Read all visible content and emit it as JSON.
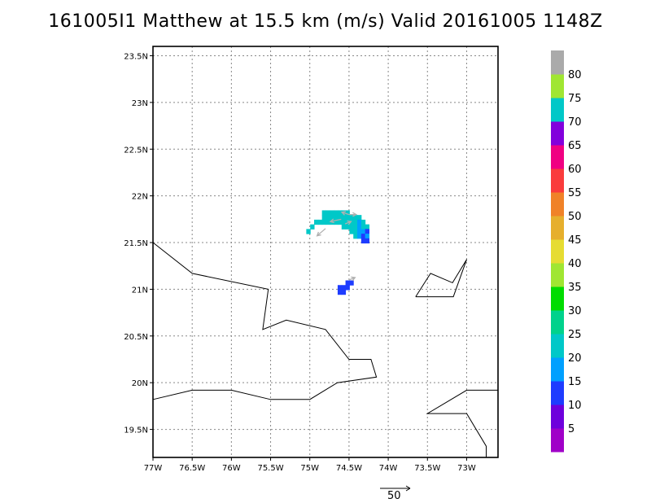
{
  "title": "161005I1 Matthew at 15.5 km (m/s) Valid 20161005 1148Z",
  "map": {
    "lon_range": [
      -77,
      -72.6
    ],
    "lat_range": [
      19.2,
      23.6
    ],
    "lon_ticks": [
      {
        "value": -77,
        "label": "77W"
      },
      {
        "value": -76.5,
        "label": "76.5W"
      },
      {
        "value": -76,
        "label": "76W"
      },
      {
        "value": -75.5,
        "label": "75.5W"
      },
      {
        "value": -75,
        "label": "75W"
      },
      {
        "value": -74.5,
        "label": "74.5W"
      },
      {
        "value": -74,
        "label": "74W"
      },
      {
        "value": -73.5,
        "label": "73.5W"
      },
      {
        "value": -73,
        "label": "73W"
      }
    ],
    "lat_ticks": [
      {
        "value": 19.5,
        "label": "19.5N"
      },
      {
        "value": 20,
        "label": "20N"
      },
      {
        "value": 20.5,
        "label": "20.5N"
      },
      {
        "value": 21,
        "label": "21N"
      },
      {
        "value": 21.5,
        "label": "21.5N"
      },
      {
        "value": 22,
        "label": "22N"
      },
      {
        "value": 22.5,
        "label": "22.5N"
      },
      {
        "value": 23,
        "label": "23N"
      },
      {
        "value": 23.5,
        "label": "23.5N"
      }
    ],
    "grid": true,
    "coastlines": [
      [
        [
          -77,
          21.5
        ],
        [
          -76.5,
          21.17
        ],
        [
          -75.53,
          21.0
        ],
        [
          -75.6,
          20.57
        ],
        [
          -75.3,
          20.67
        ],
        [
          -74.8,
          20.57
        ],
        [
          -74.5,
          20.25
        ],
        [
          -74.22,
          20.25
        ],
        [
          -74.15,
          20.06
        ],
        [
          -74.65,
          20.0
        ],
        [
          -75.0,
          19.82
        ],
        [
          -75.5,
          19.82
        ],
        [
          -76.0,
          19.92
        ],
        [
          -76.5,
          19.92
        ],
        [
          -77,
          19.82
        ]
      ],
      [
        [
          -73.65,
          20.92
        ],
        [
          -73.46,
          21.17
        ],
        [
          -73.18,
          21.07
        ],
        [
          -73.0,
          21.32
        ],
        [
          -73.17,
          20.92
        ],
        [
          -73.65,
          20.92
        ]
      ],
      [
        [
          -72.6,
          19.92
        ],
        [
          -73.0,
          19.92
        ],
        [
          -73.5,
          19.67
        ],
        [
          -73.0,
          19.67
        ],
        [
          -72.75,
          19.32
        ],
        [
          -72.75,
          19.2
        ]
      ]
    ],
    "wind_cells": [
      {
        "lon": -74.82,
        "lat": 21.82,
        "v": 22
      },
      {
        "lon": -74.77,
        "lat": 21.82,
        "v": 22
      },
      {
        "lon": -74.72,
        "lat": 21.82,
        "v": 22
      },
      {
        "lon": -74.67,
        "lat": 21.82,
        "v": 22
      },
      {
        "lon": -74.62,
        "lat": 21.82,
        "v": 22
      },
      {
        "lon": -74.57,
        "lat": 21.82,
        "v": 20
      },
      {
        "lon": -74.52,
        "lat": 21.82,
        "v": 22
      },
      {
        "lon": -74.47,
        "lat": 21.77,
        "v": 20
      },
      {
        "lon": -74.42,
        "lat": 21.77,
        "v": 20
      },
      {
        "lon": -74.37,
        "lat": 21.77,
        "v": 20
      },
      {
        "lon": -74.82,
        "lat": 21.77,
        "v": 22
      },
      {
        "lon": -74.77,
        "lat": 21.77,
        "v": 22
      },
      {
        "lon": -74.72,
        "lat": 21.77,
        "v": 22
      },
      {
        "lon": -74.67,
        "lat": 21.77,
        "v": 20
      },
      {
        "lon": -74.62,
        "lat": 21.77,
        "v": 20
      },
      {
        "lon": -74.57,
        "lat": 21.77,
        "v": 22
      },
      {
        "lon": -74.52,
        "lat": 21.77,
        "v": 20
      },
      {
        "lon": -74.92,
        "lat": 21.72,
        "v": 22
      },
      {
        "lon": -74.87,
        "lat": 21.72,
        "v": 22
      },
      {
        "lon": -74.82,
        "lat": 21.72,
        "v": 22
      },
      {
        "lon": -74.77,
        "lat": 21.72,
        "v": 22
      },
      {
        "lon": -74.72,
        "lat": 21.72,
        "v": 22
      },
      {
        "lon": -74.67,
        "lat": 21.72,
        "v": 22
      },
      {
        "lon": -74.62,
        "lat": 21.72,
        "v": 22
      },
      {
        "lon": -74.57,
        "lat": 21.72,
        "v": 20
      },
      {
        "lon": -74.52,
        "lat": 21.72,
        "v": 20
      },
      {
        "lon": -74.47,
        "lat": 21.72,
        "v": 20
      },
      {
        "lon": -74.42,
        "lat": 21.72,
        "v": 20
      },
      {
        "lon": -74.37,
        "lat": 21.72,
        "v": 17
      },
      {
        "lon": -74.32,
        "lat": 21.72,
        "v": 20
      },
      {
        "lon": -74.97,
        "lat": 21.67,
        "v": 22
      },
      {
        "lon": -74.57,
        "lat": 21.67,
        "v": 22
      },
      {
        "lon": -74.52,
        "lat": 21.67,
        "v": 22
      },
      {
        "lon": -74.47,
        "lat": 21.67,
        "v": 20
      },
      {
        "lon": -74.42,
        "lat": 21.67,
        "v": 20
      },
      {
        "lon": -74.37,
        "lat": 21.67,
        "v": 17
      },
      {
        "lon": -74.32,
        "lat": 21.67,
        "v": 20
      },
      {
        "lon": -74.27,
        "lat": 21.67,
        "v": 20
      },
      {
        "lon": -75.02,
        "lat": 21.62,
        "v": 24
      },
      {
        "lon": -74.47,
        "lat": 21.62,
        "v": 22
      },
      {
        "lon": -74.42,
        "lat": 21.62,
        "v": 20
      },
      {
        "lon": -74.37,
        "lat": 21.62,
        "v": 17
      },
      {
        "lon": -74.32,
        "lat": 21.62,
        "v": 17
      },
      {
        "lon": -74.27,
        "lat": 21.62,
        "v": 12
      },
      {
        "lon": -74.42,
        "lat": 21.57,
        "v": 20
      },
      {
        "lon": -74.37,
        "lat": 21.57,
        "v": 17
      },
      {
        "lon": -74.32,
        "lat": 21.57,
        "v": 12
      },
      {
        "lon": -74.27,
        "lat": 21.57,
        "v": 17
      },
      {
        "lon": -74.32,
        "lat": 21.52,
        "v": 12
      },
      {
        "lon": -74.27,
        "lat": 21.52,
        "v": 12
      },
      {
        "lon": -74.52,
        "lat": 21.07,
        "v": 12
      },
      {
        "lon": -74.47,
        "lat": 21.07,
        "v": 10
      },
      {
        "lon": -74.57,
        "lat": 21.02,
        "v": 10
      },
      {
        "lon": -74.52,
        "lat": 21.02,
        "v": 12
      },
      {
        "lon": -74.62,
        "lat": 21.02,
        "v": 12
      },
      {
        "lon": -74.62,
        "lat": 20.97,
        "v": 10
      },
      {
        "lon": -74.57,
        "lat": 20.97,
        "v": 10
      }
    ],
    "wind_vectors": [
      {
        "lon": -74.5,
        "lat": 21.8,
        "u": -12,
        "v": 4
      },
      {
        "lon": -74.5,
        "lat": 21.8,
        "u": 12,
        "v": 0
      },
      {
        "lon": -74.6,
        "lat": 21.75,
        "u": -18,
        "v": -4
      },
      {
        "lon": -74.8,
        "lat": 21.65,
        "u": -14,
        "v": -12
      },
      {
        "lon": -74.55,
        "lat": 21.7,
        "u": 10,
        "v": 4
      },
      {
        "lon": -74.5,
        "lat": 21.1,
        "u": 10,
        "v": 4
      }
    ]
  },
  "colorbar": {
    "colors": [
      "#a000c8",
      "#6e00dc",
      "#1e3cff",
      "#00a0ff",
      "#00c8c8",
      "#00d28c",
      "#00dc00",
      "#a0e632",
      "#e6dc32",
      "#e6af2d",
      "#f08228",
      "#fa3c3c",
      "#f00082",
      "#8200dc",
      "#00c8c8",
      "#a0e632",
      "#aaaaaa"
    ],
    "labels": [
      "5",
      "10",
      "15",
      "20",
      "25",
      "30",
      "35",
      "40",
      "45",
      "50",
      "55",
      "60",
      "65",
      "70",
      "75",
      "80"
    ]
  },
  "reference_vector": {
    "label": "50",
    "color": "#000000"
  },
  "colors": {
    "vector": "#b0b0b0",
    "coastline": "#000000",
    "grid": "#888888"
  }
}
